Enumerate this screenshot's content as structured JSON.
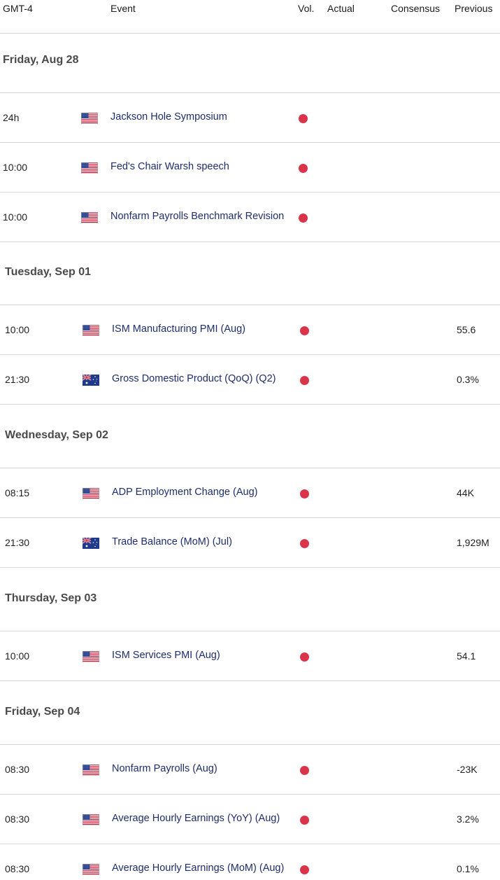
{
  "header": {
    "timezone": "GMT-4",
    "event": "Event",
    "vol": "Vol.",
    "actual": "Actual",
    "consensus": "Consensus",
    "previous": "Previous"
  },
  "colors": {
    "volatility_high": "#d9344a",
    "event_text": "#1e2d6b",
    "divider": "#d6d6d6"
  },
  "days": [
    {
      "label": "Friday, Aug 28",
      "events": [
        {
          "time": "24h",
          "country": "us-flag-icon",
          "event": "Jackson Hole Symposium",
          "previous": ""
        },
        {
          "time": "10:00",
          "country": "us-flag-icon",
          "event": "Fed's Chair Warsh speech",
          "previous": ""
        },
        {
          "time": "10:00",
          "country": "us-flag-icon",
          "event": "Nonfarm Payrolls Benchmark Revision",
          "previous": ""
        }
      ]
    },
    {
      "label": "Tuesday, Sep 01",
      "events": [
        {
          "time": "10:00",
          "country": "us-flag-icon",
          "event": "ISM Manufacturing PMI (Aug)",
          "previous": "55.6"
        },
        {
          "time": "21:30",
          "country": "au-flag-icon",
          "event": "Gross Domestic Product (QoQ) (Q2)",
          "previous": "0.3%"
        }
      ]
    },
    {
      "label": "Wednesday, Sep 02",
      "events": [
        {
          "time": "08:15",
          "country": "us-flag-icon",
          "event": "ADP Employment Change (Aug)",
          "previous": "44K"
        },
        {
          "time": "21:30",
          "country": "au-flag-icon",
          "event": "Trade Balance (MoM) (Jul)",
          "previous": "1,929M"
        }
      ]
    },
    {
      "label": "Thursday, Sep 03",
      "events": [
        {
          "time": "10:00",
          "country": "us-flag-icon",
          "event": "ISM Services PMI (Aug)",
          "previous": "54.1"
        }
      ]
    },
    {
      "label": "Friday, Sep 04",
      "events": [
        {
          "time": "08:30",
          "country": "us-flag-icon",
          "event": "Nonfarm Payrolls (Aug)",
          "previous": "-23K"
        },
        {
          "time": "08:30",
          "country": "us-flag-icon",
          "event": "Average Hourly Earnings (YoY) (Aug)",
          "previous": "3.2%"
        },
        {
          "time": "08:30",
          "country": "us-flag-icon",
          "event": "Average Hourly Earnings (MoM) (Aug)",
          "previous": "0.1%"
        }
      ]
    }
  ]
}
